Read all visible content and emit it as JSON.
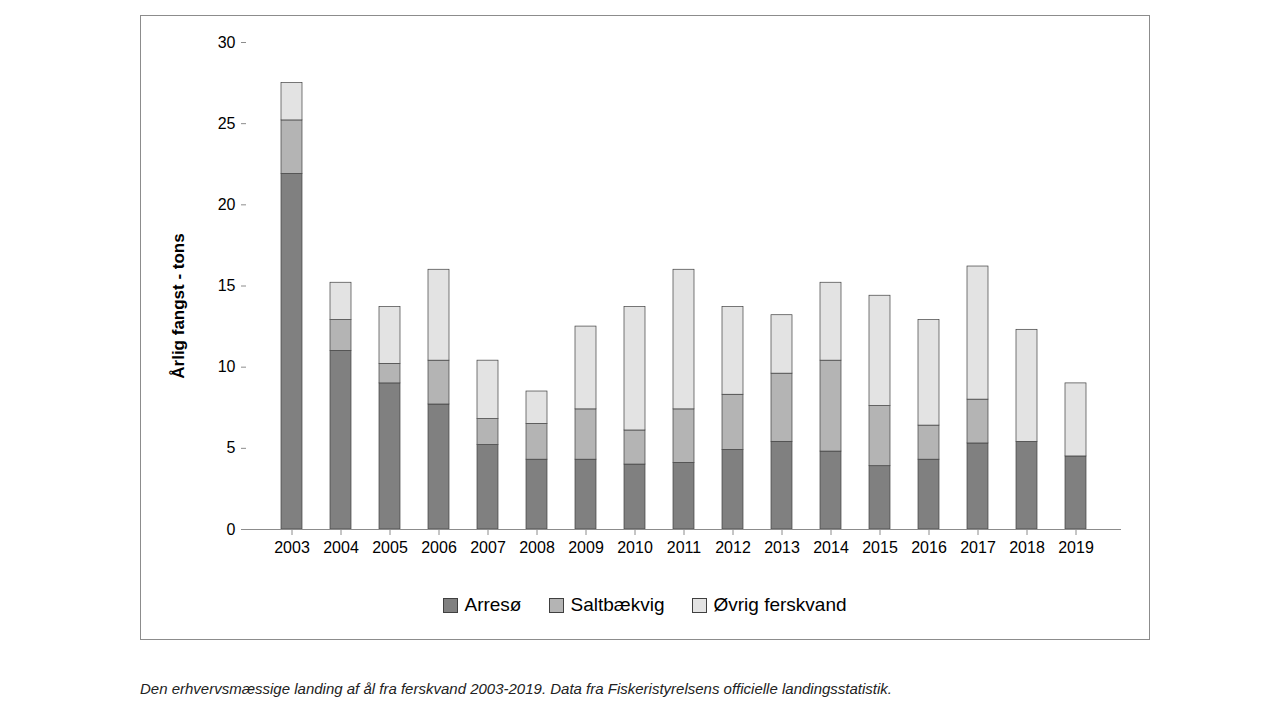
{
  "chart_data": {
    "type": "bar",
    "stacked": true,
    "y_label": "Årlig fangst - tons",
    "caption": "Den erhvervsmæssige landing af ål fra ferskvand 2003-2019. Data fra Fiskeristyrelsens officielle landingsstatistik.",
    "categories": [
      "2003",
      "2004",
      "2005",
      "2006",
      "2007",
      "2008",
      "2009",
      "2010",
      "2011",
      "2012",
      "2013",
      "2014",
      "2015",
      "2016",
      "2017",
      "2018",
      "2019"
    ],
    "series": [
      {
        "name": "Arresø",
        "color": "#808080",
        "values": [
          21.9,
          11.0,
          9.0,
          7.7,
          5.2,
          4.3,
          4.3,
          4.0,
          4.1,
          4.9,
          5.4,
          4.8,
          3.9,
          4.3,
          5.3,
          5.4,
          4.5
        ]
      },
      {
        "name": "Saltbækvig",
        "color": "#b4b4b4",
        "values": [
          3.3,
          1.9,
          1.2,
          2.7,
          1.6,
          2.2,
          3.1,
          2.1,
          3.3,
          3.4,
          4.2,
          5.6,
          3.7,
          2.1,
          2.7,
          0,
          0
        ]
      },
      {
        "name": "Øvrig ferskvand",
        "color": "#e3e3e3",
        "values": [
          2.3,
          2.3,
          3.5,
          5.6,
          3.6,
          2.0,
          5.1,
          7.6,
          8.6,
          5.4,
          3.6,
          4.8,
          6.8,
          6.5,
          8.2,
          6.9,
          4.5
        ]
      }
    ],
    "ylim": [
      0,
      30
    ],
    "yticks": [
      0,
      5,
      10,
      15,
      20,
      25,
      30
    ],
    "grid": false,
    "legend": "bottom"
  }
}
